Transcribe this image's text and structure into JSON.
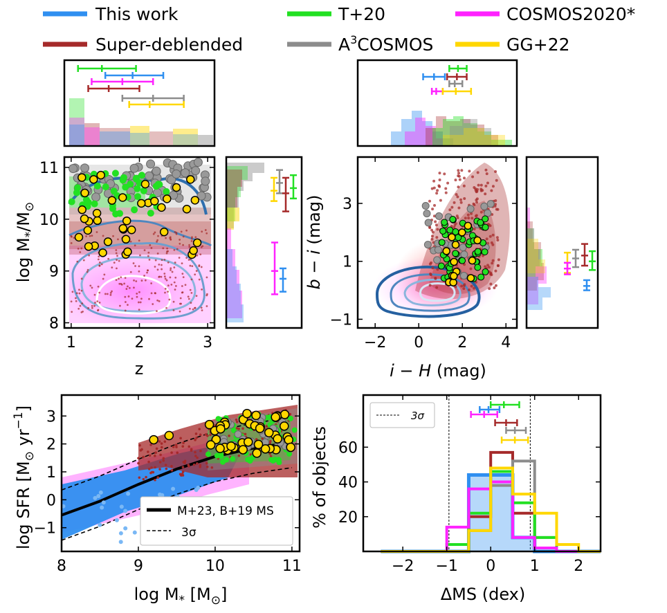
{
  "colors": {
    "this_work": "#2f8ff0",
    "super_deblended": "#a52a2a",
    "t20": "#22e022",
    "a3cosmos": "#8c8c8c",
    "cosmos2020": "#ff22ff",
    "gg22": "#ffd700"
  },
  "legend": {
    "entries": [
      {
        "key": "this_work",
        "label": "This work"
      },
      {
        "key": "super_deblended",
        "label": "Super-deblended"
      },
      {
        "key": "t20",
        "label": "T+20"
      },
      {
        "key": "a3cosmos",
        "label_pre": "A",
        "label_sup": "3",
        "label_post": "COSMOS"
      },
      {
        "key": "cosmos2020",
        "label": "COSMOS2020*"
      },
      {
        "key": "gg22",
        "label": "GG+22"
      }
    ]
  },
  "chart_data": [
    {
      "id": "mass-redshift",
      "type": "scatter",
      "xlabel": "z",
      "ylabel_pre": "log M",
      "ylabel_sub1": "*",
      "ylabel_mid": "/M",
      "ylabel_sub2": "⊙",
      "xlim": [
        0.9,
        3.1
      ],
      "ylim": [
        7.9,
        11.2
      ],
      "xticks": [
        "1",
        "2",
        "3"
      ],
      "yticks": [
        "8",
        "9",
        "10",
        "11"
      ],
      "top_hist_errorbars": [
        {
          "series": "t20",
          "median": 1.45,
          "lo": 1.1,
          "hi": 1.95
        },
        {
          "series": "this_work",
          "median": 1.9,
          "lo": 1.5,
          "hi": 2.35
        },
        {
          "series": "cosmos2020",
          "median": 1.75,
          "lo": 1.3,
          "hi": 2.2
        },
        {
          "series": "super_deblended",
          "median": 1.55,
          "lo": 1.25,
          "hi": 2.0
        },
        {
          "series": "a3cosmos",
          "median": 2.2,
          "lo": 1.75,
          "hi": 2.65
        },
        {
          "series": "gg22",
          "median": 2.15,
          "lo": 1.85,
          "hi": 2.65
        }
      ],
      "side_hist_errorbars": [
        {
          "series": "gg22",
          "median": 10.55,
          "lo": 10.35,
          "hi": 10.8
        },
        {
          "series": "a3cosmos",
          "median": 10.7,
          "lo": 10.5,
          "hi": 10.95
        },
        {
          "series": "super_deblended",
          "median": 10.5,
          "lo": 10.15,
          "hi": 10.8
        },
        {
          "series": "t20",
          "median": 10.6,
          "lo": 10.4,
          "hi": 10.85
        },
        {
          "series": "cosmos2020",
          "median": 9.0,
          "lo": 8.55,
          "hi": 9.55
        },
        {
          "series": "this_work",
          "median": 8.85,
          "lo": 8.6,
          "hi": 9.05
        }
      ]
    },
    {
      "id": "color-color",
      "type": "scatter",
      "xlabel_pre": "i − H",
      "xlabel_post": " (mag)",
      "ylabel_pre": "b − i",
      "ylabel_post": " (mag)",
      "xlim": [
        -2.8,
        4.5
      ],
      "ylim": [
        -1.3,
        4.6
      ],
      "xticks": [
        "−2",
        "0",
        "2",
        "4"
      ],
      "yticks": [
        "−1",
        "1",
        "3"
      ],
      "top_hist_errorbars": [
        {
          "series": "t20",
          "median": 1.8,
          "lo": 1.4,
          "hi": 2.2
        },
        {
          "series": "this_work",
          "median": 0.7,
          "lo": 0.2,
          "hi": 1.2
        },
        {
          "series": "super_deblended",
          "median": 1.75,
          "lo": 1.3,
          "hi": 2.2
        },
        {
          "series": "a3cosmos",
          "median": 1.65,
          "lo": 1.4,
          "hi": 2.0
        },
        {
          "series": "cosmos2020",
          "median": 0.8,
          "lo": 0.6,
          "hi": 1.1
        },
        {
          "series": "gg22",
          "median": 1.7,
          "lo": 1.1,
          "hi": 2.4
        }
      ],
      "side_hist_errorbars": [
        {
          "series": "gg22",
          "median": 0.95,
          "lo": 0.6,
          "hi": 1.3
        },
        {
          "series": "a3cosmos",
          "median": 1.1,
          "lo": 0.8,
          "hi": 1.4
        },
        {
          "series": "super_deblended",
          "median": 1.2,
          "lo": 0.85,
          "hi": 1.6
        },
        {
          "series": "t20",
          "median": 1.0,
          "lo": 0.7,
          "hi": 1.35
        },
        {
          "series": "cosmos2020",
          "median": 0.75,
          "lo": 0.55,
          "hi": 0.95
        },
        {
          "series": "this_work",
          "median": 0.15,
          "lo": 0.0,
          "hi": 0.35
        }
      ]
    },
    {
      "id": "main-sequence",
      "type": "scatter",
      "xlabel_pre": "log M",
      "xlabel_sub": "*",
      "xlabel_post": " [M",
      "xlabel_sub2": "⊙",
      "xlabel_end": "]",
      "ylabel_pre": "log SFR [M",
      "ylabel_sub": "⊙",
      "ylabel_post": " yr",
      "ylabel_sup": "−1",
      "ylabel_end": "]",
      "xlim": [
        8.0,
        11.1
      ],
      "ylim": [
        -1.85,
        3.75
      ],
      "xticks": [
        "8",
        "9",
        "10",
        "11"
      ],
      "yticks": [
        "−1",
        "0",
        "1",
        "2",
        "3"
      ],
      "ms_relation": {
        "label": "M+23, B+19 MS",
        "x": [
          8.0,
          8.5,
          9.0,
          9.5,
          10.0,
          10.5,
          11.0
        ],
        "y": [
          -0.55,
          -0.05,
          0.55,
          1.1,
          1.55,
          1.85,
          2.05
        ]
      },
      "scatter_band_label": "3σ",
      "scatter_band_dex": 0.9
    },
    {
      "id": "delta-ms-hist",
      "type": "bar",
      "xlabel": "ΔMS (dex)",
      "ylabel": "% of objects",
      "xlim": [
        -2.9,
        2.5
      ],
      "ylim": [
        0,
        90
      ],
      "xticks": [
        "−2",
        "−1",
        "0",
        "1",
        "2"
      ],
      "yticks": [
        "20",
        "40",
        "60"
      ],
      "threshold_label": "3σ",
      "thresholds": [
        -0.95,
        0.9
      ],
      "bin_edges": [
        -2.5,
        -2.0,
        -1.5,
        -1.0,
        -0.5,
        0.0,
        0.5,
        1.0,
        1.5,
        2.0,
        2.5
      ],
      "series": [
        {
          "name": "this_work",
          "values": [
            0,
            0,
            0,
            0,
            44,
            44,
            8,
            0,
            0,
            0
          ]
        },
        {
          "name": "super_deblended",
          "values": [
            0,
            0,
            0,
            0,
            20,
            57,
            22,
            2,
            0,
            0
          ]
        },
        {
          "name": "a3cosmos",
          "values": [
            0,
            0,
            0,
            0,
            12,
            38,
            52,
            8,
            0,
            0
          ]
        },
        {
          "name": "t20",
          "values": [
            0,
            0,
            0,
            4,
            22,
            46,
            28,
            8,
            0,
            0
          ]
        },
        {
          "name": "cosmos2020",
          "values": [
            0,
            0,
            0,
            14,
            36,
            40,
            8,
            2,
            0,
            0
          ]
        },
        {
          "name": "gg22",
          "values": [
            0,
            0,
            0,
            0,
            12,
            48,
            33,
            22,
            4,
            0
          ]
        }
      ],
      "errorbars": [
        {
          "series": "t20",
          "median": 0.3,
          "lo": 0.0,
          "hi": 0.65
        },
        {
          "series": "this_work",
          "median": -0.05,
          "lo": -0.25,
          "hi": 0.2
        },
        {
          "series": "cosmos2020",
          "median": -0.15,
          "lo": -0.45,
          "hi": 0.15
        },
        {
          "series": "super_deblended",
          "median": 0.35,
          "lo": 0.1,
          "hi": 0.6
        },
        {
          "series": "a3cosmos",
          "median": 0.55,
          "lo": 0.35,
          "hi": 0.8
        },
        {
          "series": "gg22",
          "median": 0.55,
          "lo": 0.25,
          "hi": 0.85
        }
      ]
    }
  ]
}
